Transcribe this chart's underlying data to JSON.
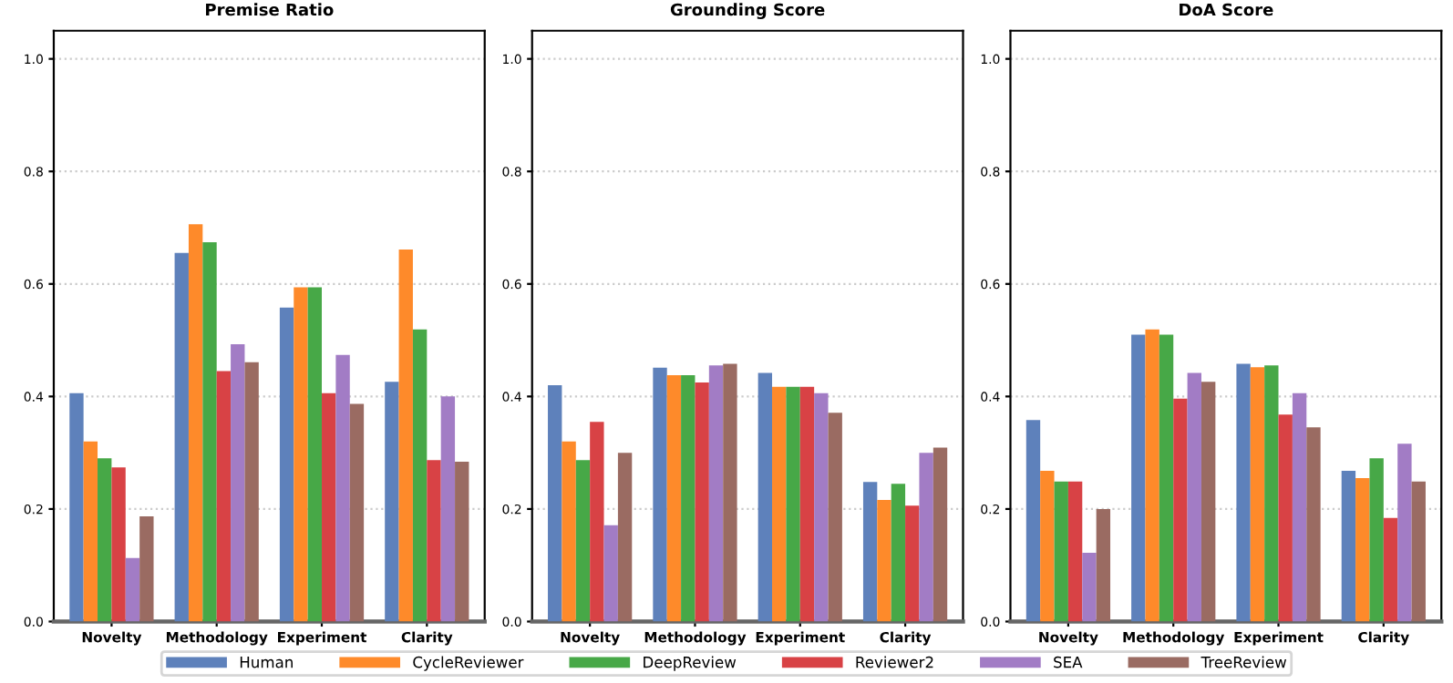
{
  "chart_data": [
    {
      "type": "bar",
      "title": "Premise Ratio",
      "categories": [
        "Novelty",
        "Methodology",
        "Experiment",
        "Clarity"
      ],
      "ylim": [
        0,
        1.05
      ],
      "yticks": [
        {
          "value": 0,
          "label": "0.0"
        },
        {
          "value": 0.2,
          "label": "0.2"
        },
        {
          "value": 0.4,
          "label": "0.4"
        },
        {
          "value": 0.6,
          "label": "0.6"
        },
        {
          "value": 0.8,
          "label": "0.8"
        },
        {
          "value": 1.0,
          "label": "1.0"
        }
      ],
      "grid": "y",
      "legend": "bottom",
      "series": [
        {
          "name": "Human",
          "color": "#5e81bb",
          "values": [
            0.406,
            0.655,
            0.558,
            0.426
          ]
        },
        {
          "name": "CycleReviewer",
          "color": "#fe8a2a",
          "values": [
            0.32,
            0.706,
            0.594,
            0.661
          ]
        },
        {
          "name": "DeepReview",
          "color": "#47a847",
          "values": [
            0.29,
            0.674,
            0.594,
            0.519
          ]
        },
        {
          "name": "Reviewer2",
          "color": "#d84245",
          "values": [
            0.274,
            0.445,
            0.406,
            0.287
          ]
        },
        {
          "name": "SEA",
          "color": "#a27cc5",
          "values": [
            0.113,
            0.493,
            0.474,
            0.4
          ]
        },
        {
          "name": "TreeReview",
          "color": "#9a6b62",
          "values": [
            0.187,
            0.461,
            0.387,
            0.284
          ]
        }
      ]
    },
    {
      "type": "bar",
      "title": "Grounding Score",
      "categories": [
        "Novelty",
        "Methodology",
        "Experiment",
        "Clarity"
      ],
      "ylim": [
        0,
        1.05
      ],
      "yticks": [
        {
          "value": 0,
          "label": "0.0"
        },
        {
          "value": 0.2,
          "label": "0.2"
        },
        {
          "value": 0.4,
          "label": "0.4"
        },
        {
          "value": 0.6,
          "label": "0.6"
        },
        {
          "value": 0.8,
          "label": "0.8"
        },
        {
          "value": 1.0,
          "label": "1.0"
        }
      ],
      "grid": "y",
      "series": [
        {
          "name": "Human",
          "color": "#5e81bb",
          "values": [
            0.42,
            0.451,
            0.442,
            0.248
          ]
        },
        {
          "name": "CycleReviewer",
          "color": "#fe8a2a",
          "values": [
            0.32,
            0.438,
            0.417,
            0.216
          ]
        },
        {
          "name": "DeepReview",
          "color": "#47a847",
          "values": [
            0.287,
            0.438,
            0.417,
            0.245
          ]
        },
        {
          "name": "Reviewer2",
          "color": "#d84245",
          "values": [
            0.355,
            0.425,
            0.417,
            0.206
          ]
        },
        {
          "name": "SEA",
          "color": "#a27cc5",
          "values": [
            0.171,
            0.455,
            0.406,
            0.3
          ]
        },
        {
          "name": "TreeReview",
          "color": "#9a6b62",
          "values": [
            0.3,
            0.458,
            0.371,
            0.309
          ]
        }
      ]
    },
    {
      "type": "bar",
      "title": "DoA Score",
      "categories": [
        "Novelty",
        "Methodology",
        "Experiment",
        "Clarity"
      ],
      "ylim": [
        0,
        1.05
      ],
      "yticks": [
        {
          "value": 0,
          "label": "0.0"
        },
        {
          "value": 0.2,
          "label": "0.2"
        },
        {
          "value": 0.4,
          "label": "0.4"
        },
        {
          "value": 0.6,
          "label": "0.6"
        },
        {
          "value": 0.8,
          "label": "0.8"
        },
        {
          "value": 1.0,
          "label": "1.0"
        }
      ],
      "grid": "y",
      "series": [
        {
          "name": "Human",
          "color": "#5e81bb",
          "values": [
            0.358,
            0.51,
            0.458,
            0.268
          ]
        },
        {
          "name": "CycleReviewer",
          "color": "#fe8a2a",
          "values": [
            0.268,
            0.519,
            0.452,
            0.255
          ]
        },
        {
          "name": "DeepReview",
          "color": "#47a847",
          "values": [
            0.249,
            0.51,
            0.455,
            0.29
          ]
        },
        {
          "name": "Reviewer2",
          "color": "#d84245",
          "values": [
            0.249,
            0.396,
            0.368,
            0.184
          ]
        },
        {
          "name": "SEA",
          "color": "#a27cc5",
          "values": [
            0.122,
            0.442,
            0.406,
            0.316
          ]
        },
        {
          "name": "TreeReview",
          "color": "#9a6b62",
          "values": [
            0.2,
            0.426,
            0.345,
            0.249
          ]
        }
      ]
    }
  ]
}
